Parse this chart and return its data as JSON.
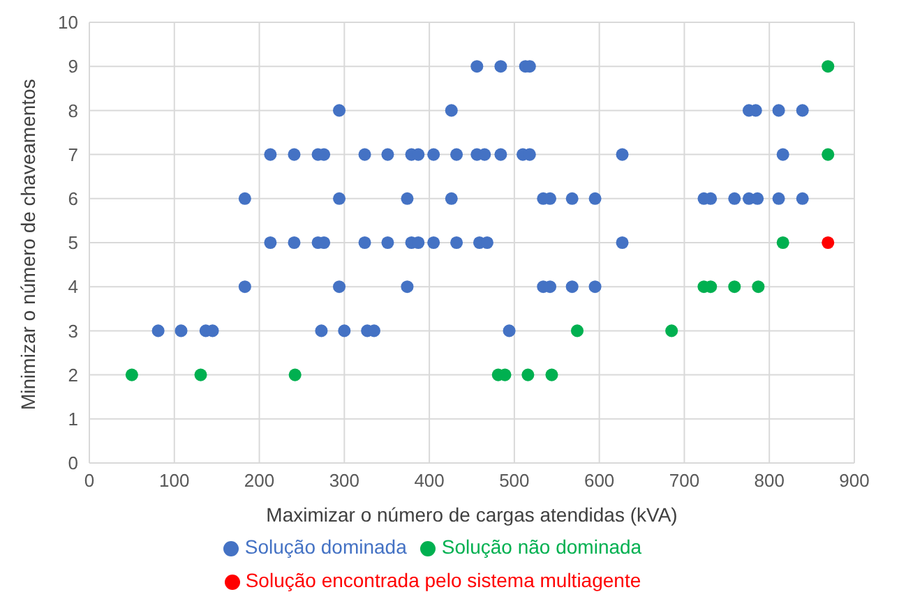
{
  "chart_data": {
    "type": "scatter",
    "xlabel": "Maximizar o número de cargas atendidas (kVA)",
    "ylabel": "Minimizar  o número de chaveamentos",
    "xlim": [
      0,
      900
    ],
    "xticks": [
      0,
      100,
      200,
      300,
      400,
      500,
      600,
      700,
      800,
      900
    ],
    "ylim": [
      0,
      10
    ],
    "yticks": [
      0,
      1,
      2,
      3,
      4,
      5,
      6,
      7,
      8,
      9,
      10
    ],
    "grid": true,
    "legend": "bottom",
    "marker": "circle",
    "series": [
      {
        "name": "Solução dominada",
        "color": "#4472c4",
        "x": [
          81,
          108,
          137,
          145,
          273,
          300,
          327,
          335,
          494,
          183,
          294,
          374,
          534,
          542,
          568,
          595,
          213,
          241,
          269,
          276,
          324,
          351,
          379,
          387,
          405,
          432,
          459,
          468,
          627,
          183,
          294,
          374,
          426,
          534,
          542,
          568,
          595,
          723,
          731,
          759,
          776,
          786,
          811,
          839,
          213,
          241,
          269,
          276,
          324,
          351,
          379,
          387,
          405,
          432,
          456,
          465,
          484,
          510,
          518,
          627,
          816,
          294,
          426,
          776,
          784,
          811,
          839,
          456,
          484,
          513,
          518
        ],
        "values": [
          3,
          3,
          3,
          3,
          3,
          3,
          3,
          3,
          3,
          4,
          4,
          4,
          4,
          4,
          4,
          4,
          5,
          5,
          5,
          5,
          5,
          5,
          5,
          5,
          5,
          5,
          5,
          5,
          5,
          6,
          6,
          6,
          6,
          6,
          6,
          6,
          6,
          6,
          6,
          6,
          6,
          6,
          6,
          6,
          7,
          7,
          7,
          7,
          7,
          7,
          7,
          7,
          7,
          7,
          7,
          7,
          7,
          7,
          7,
          7,
          7,
          8,
          8,
          8,
          8,
          8,
          8,
          9,
          9,
          9,
          9
        ]
      },
      {
        "name": "Solução não dominada",
        "color": "#00b050",
        "x": [
          50,
          131,
          242,
          481,
          489,
          516,
          544,
          574,
          685,
          723,
          731,
          759,
          787,
          816,
          869,
          869
        ],
        "values": [
          2,
          2,
          2,
          2,
          2,
          2,
          2,
          3,
          3,
          4,
          4,
          4,
          4,
          5,
          7,
          9
        ]
      },
      {
        "name": "Solução encontrada pelo sistema multiagente",
        "color": "#ff0000",
        "x": [
          869
        ],
        "values": [
          5
        ]
      }
    ]
  }
}
